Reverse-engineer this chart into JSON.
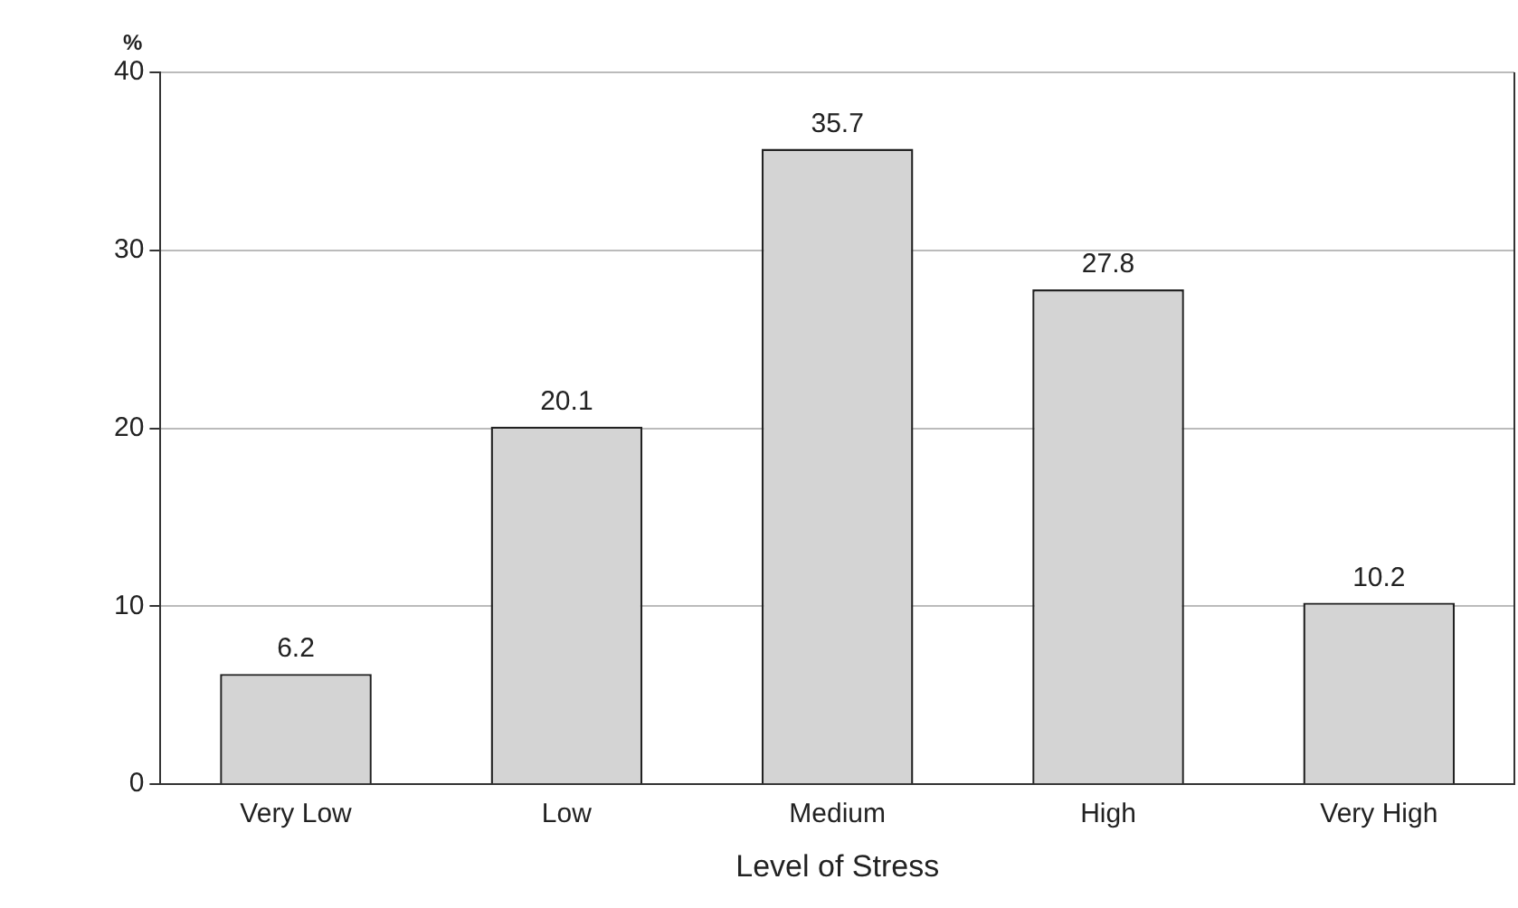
{
  "chart_data": {
    "type": "bar",
    "xlabel": "Level of Stress",
    "ylabel": "%",
    "categories": [
      "Very Low",
      "Low",
      "Medium",
      "High",
      "Very High"
    ],
    "values": [
      6.2,
      20.1,
      35.7,
      27.8,
      10.2
    ],
    "color": "#d4d4d4",
    "ylim": [
      0,
      40
    ],
    "yticks": [
      0,
      10,
      20,
      30,
      40
    ],
    "grid": "y",
    "data_labels": true,
    "legend": false
  }
}
